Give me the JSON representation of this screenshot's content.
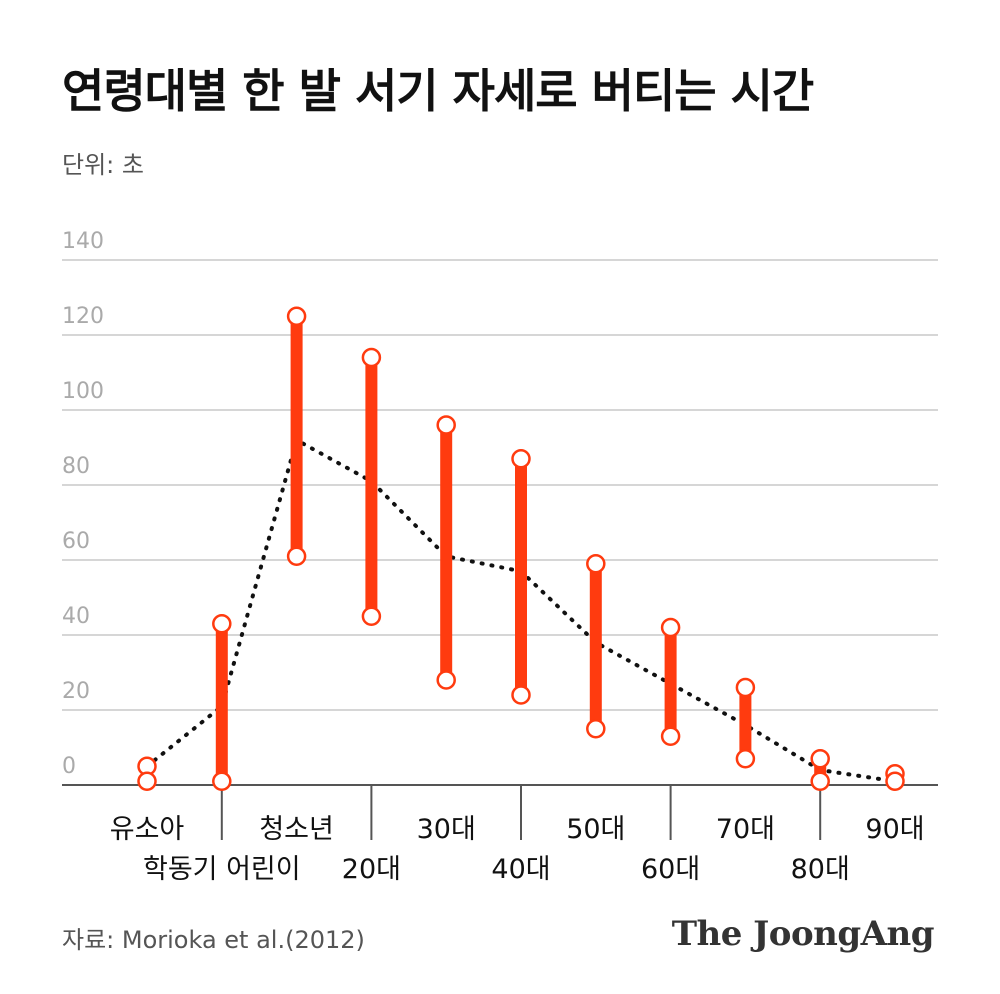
{
  "header": {
    "title": "연령대별 한 발 서기 자세로 버티는 시간",
    "unit": "단위: 초"
  },
  "footer": {
    "source": "자료: Morioka et al.(2012)",
    "brand": "The JoongAng"
  },
  "colors": {
    "range_bar": "#ff3b0f",
    "gridline": "#c8c8c8",
    "axis": "#555555",
    "tick_label": "#aaaaaa",
    "category_label": "#111111",
    "average_line": "#111111"
  },
  "chart_data": {
    "type": "range-dot",
    "title": "연령대별 한 발 서기 자세로 버티는 시간",
    "ylabel": "단위: 초",
    "ylim": [
      0,
      140
    ],
    "yticks": [
      0,
      20,
      40,
      60,
      80,
      100,
      120,
      140
    ],
    "grid": true,
    "categories": [
      "유소아",
      "학동기 어린이",
      "청소년",
      "20대",
      "30대",
      "40대",
      "50대",
      "60대",
      "70대",
      "80대",
      "90대"
    ],
    "label_row": [
      "top",
      "bottom",
      "top",
      "bottom",
      "top",
      "bottom",
      "top",
      "bottom",
      "top",
      "bottom",
      "top"
    ],
    "range_low": [
      1,
      1,
      61,
      45,
      28,
      24,
      15,
      13,
      7,
      1,
      1
    ],
    "range_high": [
      5,
      43,
      125,
      114,
      96,
      87,
      59,
      42,
      26,
      7,
      3
    ],
    "average": [
      5,
      21,
      92,
      81,
      61,
      57,
      38,
      27,
      16,
      4,
      1
    ]
  }
}
